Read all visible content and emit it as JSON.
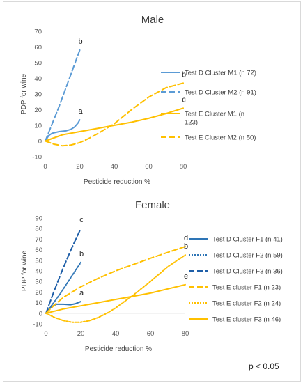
{
  "footnote": "p < 0.05",
  "chart_data": [
    {
      "type": "line",
      "title": "Male",
      "xlabel": "Pesticide reduction %",
      "ylabel": "PDP for wine",
      "xlim": [
        0,
        80
      ],
      "ylim": [
        -10,
        70
      ],
      "xticks": [
        0,
        20,
        40,
        60,
        80
      ],
      "yticks": [
        -10,
        0,
        10,
        20,
        30,
        40,
        50,
        60,
        70
      ],
      "grid": false,
      "legend_position": "right",
      "series": [
        {
          "name": "Test D Cluster M1 (n 72)",
          "color": "#5b9bd5",
          "dash": "solid",
          "end_label": "a",
          "x": [
            0,
            2,
            4,
            8,
            12,
            15,
            17,
            19,
            20
          ],
          "y": [
            0,
            3.5,
            5,
            6,
            6.5,
            7.5,
            9,
            11.5,
            13.5
          ]
        },
        {
          "name": "Test D Cluster M2 (n 91)",
          "color": "#5b9bd5",
          "dash": "dashed",
          "end_label": "b",
          "x": [
            0,
            4,
            8,
            12,
            16,
            20
          ],
          "y": [
            0,
            11,
            22,
            34,
            46,
            58
          ]
        },
        {
          "name": "Test E Cluster M1 (n 123)",
          "color": "#ffc000",
          "dash": "solid",
          "end_label": "c",
          "x": [
            0,
            5,
            10,
            20,
            30,
            40,
            50,
            60,
            70,
            80
          ],
          "y": [
            0,
            2,
            4,
            6,
            8,
            10,
            12,
            14.5,
            17.5,
            21
          ]
        },
        {
          "name": "Test E Cluster M2 (n 50)",
          "color": "#ffc000",
          "dash": "dashed",
          "end_label": "b",
          "x": [
            0,
            5,
            10,
            15,
            20,
            25,
            30,
            40,
            50,
            60,
            70,
            80
          ],
          "y": [
            0,
            -2,
            -3,
            -2.5,
            -1,
            1.5,
            4.5,
            11,
            20,
            28,
            34,
            37
          ]
        }
      ]
    },
    {
      "type": "line",
      "title": "Female",
      "xlabel": "Pesticide reduction %",
      "ylabel": "PDP for wine",
      "xlim": [
        0,
        80
      ],
      "ylim": [
        -10,
        90
      ],
      "xticks": [
        0,
        20,
        40,
        60,
        80
      ],
      "yticks": [
        -10,
        0,
        10,
        20,
        30,
        40,
        50,
        60,
        70,
        80,
        90
      ],
      "grid": false,
      "legend_position": "right",
      "series": [
        {
          "name": "Test D Cluster F1 (n 41)",
          "color": "#2e75b6",
          "dash": "solid",
          "end_label": "a",
          "x": [
            0,
            3,
            6,
            10,
            14,
            17,
            20
          ],
          "y": [
            0,
            6,
            8.5,
            8.5,
            8,
            9,
            11
          ]
        },
        {
          "name": "Test D Cluster F2 (n 59)",
          "color": "#2e75b6",
          "dash": "dotted",
          "end_label": "b",
          "x": [
            0,
            4,
            8,
            12,
            16,
            20
          ],
          "y": [
            0,
            9,
            18,
            28,
            38,
            48
          ]
        },
        {
          "name": "Test D Cluster F3 (n 36)",
          "color": "#1f5fa8",
          "dash": "dashed",
          "end_label": "c",
          "x": [
            0,
            4,
            8,
            12,
            16,
            20
          ],
          "y": [
            0,
            18,
            35,
            51,
            66,
            80
          ]
        },
        {
          "name": "Test E cluster F1 (n 23)",
          "color": "#ffc000",
          "dash": "dashed",
          "end_label": "d",
          "x": [
            0,
            5,
            10,
            20,
            30,
            40,
            50,
            60,
            70,
            80
          ],
          "y": [
            0,
            8,
            15,
            25,
            33,
            40,
            46,
            52,
            57.5,
            63
          ]
        },
        {
          "name": "Test E cluster F2 (n 24)",
          "color": "#ffc000",
          "dash": "dotted",
          "end_label": "b",
          "x": [
            0,
            5,
            10,
            15,
            20,
            25,
            30,
            35,
            40,
            50,
            60,
            70,
            80
          ],
          "y": [
            0,
            -4,
            -7,
            -8.5,
            -8.5,
            -7,
            -4,
            0,
            5,
            17,
            30,
            44,
            55
          ]
        },
        {
          "name": "Test E cluster F3 (n 46)",
          "color": "#ffc000",
          "dash": "solid",
          "end_label": "e",
          "x": [
            0,
            10,
            20,
            30,
            40,
            50,
            60,
            70,
            80
          ],
          "y": [
            0,
            4,
            7,
            10,
            13,
            16,
            19,
            23,
            27
          ]
        }
      ]
    }
  ]
}
